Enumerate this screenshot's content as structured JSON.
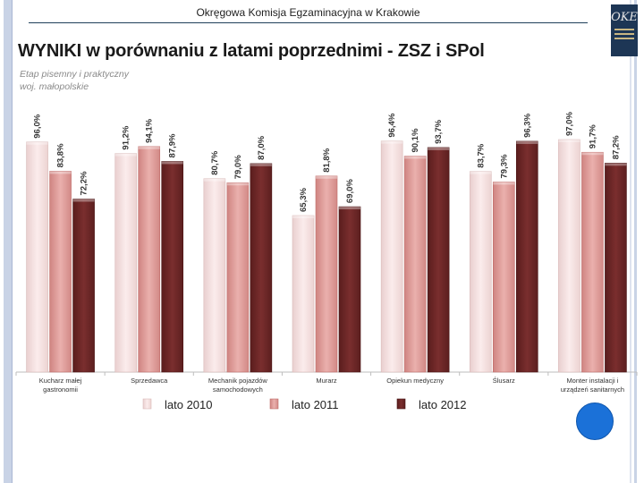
{
  "header": {
    "institution": "Okręgowa Komisja Egzaminacyjna w Krakowie",
    "logo_label": "OKE",
    "logo_icon": "oke-logo-icon"
  },
  "colors": {
    "lato2010": "#f7e0df",
    "lato2011": "#e39c99",
    "lato2012": "#6b2626",
    "accent_circle": "#1b71d8"
  },
  "chart_data": {
    "type": "bar",
    "title": "WYNIKI w porównaniu z latami poprzednimi - ZSZ i SPol",
    "subtitle_lines": [
      "Etap pisemny i praktyczny",
      "woj. małopolskie"
    ],
    "categories": [
      [
        "Kucharz małej",
        "gastronomii"
      ],
      [
        "Sprzedawca"
      ],
      [
        "Mechanik pojazdów",
        "samochodowych"
      ],
      [
        "Murarz"
      ],
      [
        "Opiekun medyczny"
      ],
      [
        "Ślusarz"
      ],
      [
        "Monter instalacji i",
        "urządzeń sanitarnych"
      ]
    ],
    "series": [
      {
        "name": "lato 2010",
        "values": [
          96.0,
          91.2,
          80.7,
          65.3,
          96.4,
          83.7,
          97.0
        ],
        "labels": [
          "96,0%",
          "91,2%",
          "80,7%",
          "65,3%",
          "96,4%",
          "83,7%",
          "97,0%"
        ]
      },
      {
        "name": "lato 2011",
        "values": [
          83.8,
          94.1,
          79.0,
          81.8,
          90.1,
          79.3,
          91.7
        ],
        "labels": [
          "83,8%",
          "94,1%",
          "79,0%",
          "81,8%",
          "90,1%",
          "79,3%",
          "91,7%"
        ]
      },
      {
        "name": "lato 2012",
        "values": [
          72.2,
          87.9,
          87.0,
          69.0,
          93.7,
          96.3,
          87.2
        ],
        "labels": [
          "72,2%",
          "87,9%",
          "87,0%",
          "69,0%",
          "93,7%",
          "96,3%",
          "87,2%"
        ]
      }
    ],
    "ylim": [
      0,
      100
    ],
    "xlabel": "",
    "ylabel": "",
    "grid": false,
    "legend_position": "bottom"
  }
}
